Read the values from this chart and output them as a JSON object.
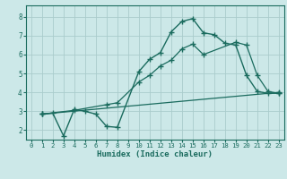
{
  "title": "",
  "xlabel": "Humidex (Indice chaleur)",
  "background_color": "#cce8e8",
  "grid_color": "#aacccc",
  "line_color": "#1a6b5e",
  "xlim": [
    -0.5,
    23.5
  ],
  "ylim": [
    1.5,
    8.6
  ],
  "yticks": [
    2,
    3,
    4,
    5,
    6,
    7,
    8
  ],
  "xticks": [
    0,
    1,
    2,
    3,
    4,
    5,
    6,
    7,
    8,
    9,
    10,
    11,
    12,
    13,
    14,
    15,
    16,
    17,
    18,
    19,
    20,
    21,
    22,
    23
  ],
  "curve1_x": [
    1,
    2,
    3,
    4,
    5,
    6,
    7,
    8,
    10,
    11,
    12,
    13,
    14,
    15,
    16,
    17,
    18,
    19,
    20,
    21,
    22,
    23
  ],
  "curve1_y": [
    2.85,
    2.9,
    1.7,
    3.1,
    3.0,
    2.85,
    2.2,
    2.15,
    5.1,
    5.75,
    6.1,
    7.2,
    7.75,
    7.9,
    7.15,
    7.05,
    6.6,
    6.5,
    4.9,
    4.05,
    3.95,
    3.95
  ],
  "curve2_x": [
    1,
    4,
    7,
    8,
    10,
    11,
    12,
    13,
    14,
    15,
    16,
    19,
    20,
    21,
    22,
    23
  ],
  "curve2_y": [
    2.85,
    3.05,
    3.35,
    3.45,
    4.55,
    4.9,
    5.4,
    5.7,
    6.3,
    6.55,
    6.0,
    6.65,
    6.5,
    4.9,
    4.05,
    3.95
  ],
  "curve3_x": [
    1,
    23
  ],
  "curve3_y": [
    2.85,
    4.0
  ]
}
